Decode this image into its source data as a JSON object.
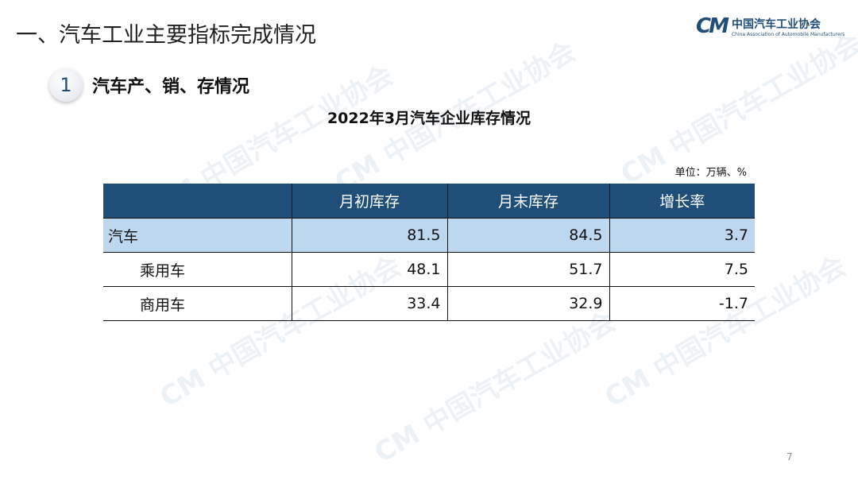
{
  "header": {
    "title": "一、汽车工业主要指标完成情况"
  },
  "logo": {
    "mark": "CM",
    "name_cn": "中国汽车工业协会",
    "name_en": "China Association of Automobile Manufacturers",
    "color": "#1f4e79"
  },
  "section": {
    "number": "1",
    "label": "汽车产、销、存情况"
  },
  "table": {
    "title": "2022年3月汽车企业库存情况",
    "unit": "单位：万辆、%",
    "columns": [
      "",
      "月初库存",
      "月末库存",
      "增长率"
    ],
    "rows": [
      {
        "name": "汽车",
        "values": [
          "81.5",
          "84.5",
          "3.7"
        ]
      },
      {
        "name": "乘用车",
        "values": [
          "48.1",
          "51.7",
          "7.5"
        ]
      },
      {
        "name": "商用车",
        "values": [
          "33.4",
          "32.9",
          "-1.7"
        ]
      }
    ],
    "header_color": "#1f4e79",
    "highlight_color": "#bdd7ee"
  },
  "page_number": "7"
}
